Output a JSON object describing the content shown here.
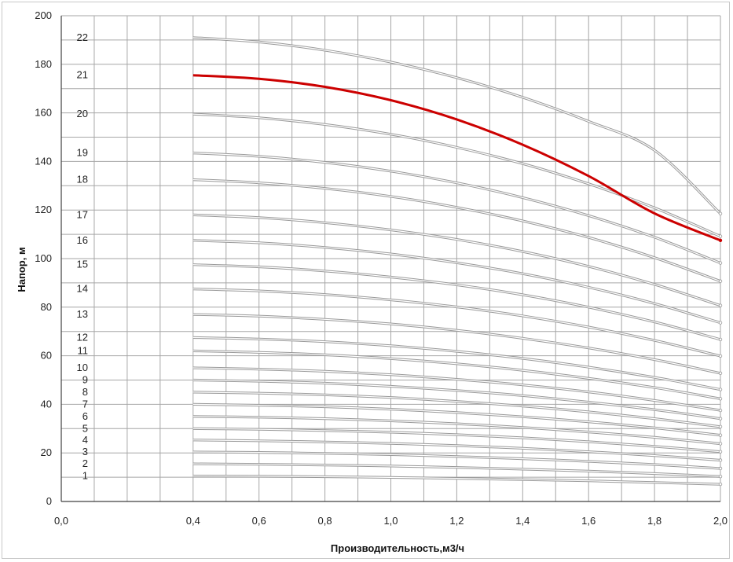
{
  "chart_data": {
    "type": "line",
    "title": "",
    "xlabel": "Производительность,м3/ч",
    "ylabel": "Напор, м",
    "xlim": [
      0.0,
      2.0
    ],
    "ylim": [
      0,
      200
    ],
    "x_ticks": [
      "0,0",
      "0,4",
      "0,6",
      "0,8",
      "1,0",
      "1,2",
      "1,4",
      "1,6",
      "1,8",
      "2,0"
    ],
    "y_ticks": [
      "0",
      "20",
      "40",
      "60",
      "80",
      "100",
      "120",
      "140",
      "160",
      "180",
      "200"
    ],
    "grid": true,
    "legend": "none",
    "colors": {
      "highlight": "#cc0000",
      "curve": "#9a9a9a",
      "grid": "#a6a6a6",
      "axis": "#404040"
    },
    "x": [
      0.4,
      0.6,
      0.8,
      1.0,
      1.2,
      1.4,
      1.6,
      1.8,
      2.0
    ],
    "series": [
      {
        "name": "1",
        "values": [
          10.5,
          10.4,
          10.2,
          9.9,
          9.5,
          9.0,
          8.5,
          7.8,
          7.1
        ]
      },
      {
        "name": "2",
        "values": [
          15.5,
          15.3,
          15.0,
          14.6,
          14.0,
          13.3,
          12.5,
          11.5,
          10.3
        ]
      },
      {
        "name": "3",
        "values": [
          20.4,
          20.2,
          19.8,
          19.3,
          18.5,
          17.6,
          16.5,
          15.2,
          13.6
        ]
      },
      {
        "name": "4",
        "values": [
          25.3,
          25.0,
          24.5,
          23.9,
          23.0,
          21.9,
          20.5,
          18.9,
          17.0
        ]
      },
      {
        "name": "5",
        "values": [
          30.0,
          29.7,
          29.2,
          28.5,
          27.5,
          26.2,
          24.6,
          22.7,
          20.5
        ]
      },
      {
        "name": "6",
        "values": [
          35.0,
          34.7,
          34.1,
          33.2,
          32.0,
          30.5,
          28.6,
          26.4,
          23.8
        ]
      },
      {
        "name": "7",
        "values": [
          40.0,
          39.6,
          39.0,
          38.0,
          36.6,
          34.9,
          32.8,
          30.3,
          27.3
        ]
      },
      {
        "name": "8",
        "values": [
          45.0,
          44.6,
          43.9,
          42.8,
          41.2,
          39.3,
          36.9,
          34.1,
          30.8
        ]
      },
      {
        "name": "9",
        "values": [
          50.0,
          49.5,
          48.7,
          47.4,
          45.7,
          43.6,
          40.9,
          37.8,
          34.1
        ]
      },
      {
        "name": "10",
        "values": [
          55.0,
          54.5,
          53.6,
          52.2,
          50.3,
          48.0,
          45.1,
          41.6,
          37.5
        ]
      },
      {
        "name": "11",
        "values": [
          62.0,
          61.4,
          60.4,
          58.8,
          56.7,
          54.0,
          50.7,
          46.9,
          42.3
        ]
      },
      {
        "name": "12",
        "values": [
          67.5,
          66.9,
          65.8,
          64.1,
          61.8,
          58.9,
          55.3,
          51.1,
          46.1
        ]
      },
      {
        "name": "13",
        "values": [
          77.0,
          76.3,
          75.0,
          73.1,
          70.5,
          67.2,
          63.2,
          58.4,
          52.8
        ]
      },
      {
        "name": "14",
        "values": [
          87.5,
          86.7,
          85.2,
          83.0,
          80.1,
          76.4,
          71.8,
          66.3,
          59.9
        ]
      },
      {
        "name": "15",
        "values": [
          97.5,
          96.6,
          94.9,
          92.4,
          89.2,
          85.1,
          80.0,
          73.9,
          66.7
        ]
      },
      {
        "name": "16",
        "values": [
          107.5,
          106.5,
          104.6,
          101.9,
          98.3,
          93.8,
          88.2,
          81.5,
          73.6
        ]
      },
      {
        "name": "17",
        "values": [
          118.0,
          116.9,
          114.8,
          111.8,
          107.9,
          102.9,
          96.8,
          89.4,
          80.7
        ]
      },
      {
        "name": "18",
        "values": [
          132.5,
          131.2,
          128.9,
          125.6,
          121.1,
          115.5,
          108.7,
          100.4,
          90.7
        ]
      },
      {
        "name": "19",
        "values": [
          143.5,
          142.1,
          139.6,
          136.0,
          131.2,
          125.1,
          117.7,
          108.8,
          98.2
        ]
      },
      {
        "name": "20",
        "values": [
          159.5,
          158.0,
          155.2,
          151.2,
          145.8,
          139.1,
          130.8,
          120.9,
          109.2
        ]
      },
      {
        "name": "21",
        "values": [
          175.5,
          174.0,
          170.7,
          165.2,
          157.3,
          146.9,
          134.0,
          118.6,
          107.5
        ]
      },
      {
        "name": "22",
        "values": [
          191.0,
          189.2,
          185.8,
          180.9,
          174.5,
          166.4,
          156.5,
          144.6,
          118.5
        ]
      }
    ],
    "highlight_series": "21"
  }
}
